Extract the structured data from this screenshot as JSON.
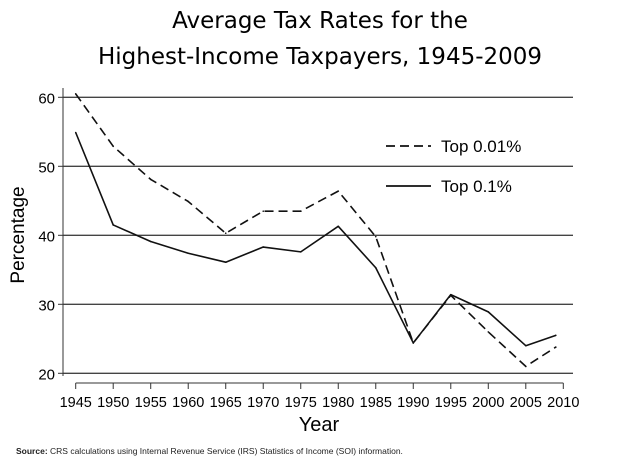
{
  "chart_data": {
    "type": "line",
    "title": "Average Tax Rates for the",
    "title_line2": "Highest-Income Taxpayers, 1945-2009",
    "xlabel": "Year",
    "ylabel": "Percentage",
    "x": [
      1945,
      1950,
      1955,
      1960,
      1965,
      1970,
      1975,
      1980,
      1985,
      1990,
      1995,
      2000,
      2005,
      2009
    ],
    "xticks": [
      "1945",
      "1950",
      "1955",
      "1960",
      "1965",
      "1970",
      "1975",
      "1980",
      "1985",
      "1990",
      "1995",
      "2000",
      "2005",
      "2010"
    ],
    "yticks": [
      "20",
      "30",
      "40",
      "50",
      "60"
    ],
    "xlim": [
      1945,
      2010
    ],
    "ylim": [
      20,
      60
    ],
    "grid": "horizontal",
    "legend_position": "top-right",
    "series": [
      {
        "name": "Top 0.01%",
        "style": "dashed",
        "values": [
          60.5,
          52.9,
          48.1,
          44.9,
          40.3,
          43.5,
          43.5,
          46.4,
          39.8,
          24.4,
          31.3,
          26.0,
          21.0,
          23.8
        ]
      },
      {
        "name": "Top 0.1%",
        "style": "solid",
        "values": [
          54.9,
          41.5,
          39.1,
          37.4,
          36.1,
          38.3,
          37.6,
          41.3,
          35.3,
          24.4,
          31.4,
          28.9,
          24.0,
          25.5
        ]
      }
    ]
  },
  "source": {
    "label": "Source:",
    "text": " CRS calculations using Internal Revenue Service (IRS) Statistics of Income (SOI) information."
  }
}
